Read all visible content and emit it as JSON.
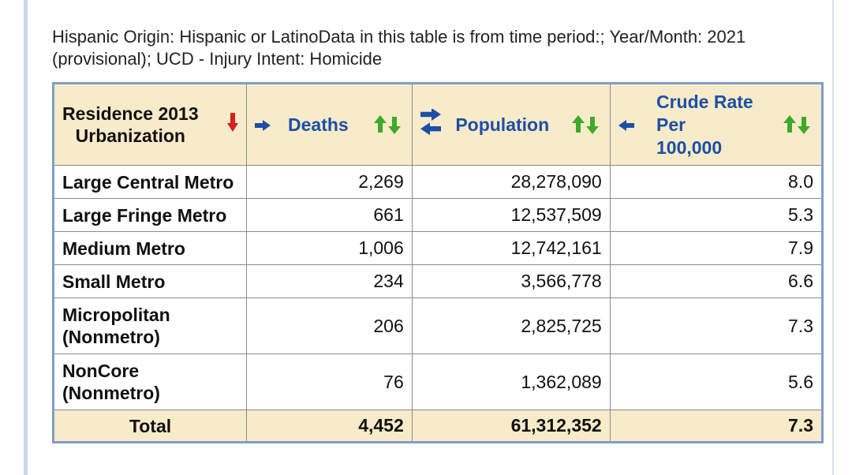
{
  "caption": "Hispanic Origin: Hispanic or LatinoData in this table is from time period:; Year/Month: 2021 (provisional); UCD - Injury Intent: Homicide",
  "table": {
    "headers": {
      "residence": [
        "Residence 2013",
        "Urbanization"
      ],
      "deaths": "Deaths",
      "population": "Population",
      "crude_rate": [
        "Crude Rate",
        "Per",
        "100,000"
      ]
    },
    "rows": [
      {
        "label": [
          "Large Central Metro"
        ],
        "deaths": "2,269",
        "population": "28,278,090",
        "rate": "8.0"
      },
      {
        "label": [
          "Large Fringe Metro"
        ],
        "deaths": "661",
        "population": "12,537,509",
        "rate": "5.3"
      },
      {
        "label": [
          "Medium Metro"
        ],
        "deaths": "1,006",
        "population": "12,742,161",
        "rate": "7.9"
      },
      {
        "label": [
          "Small Metro"
        ],
        "deaths": "234",
        "population": "3,566,778",
        "rate": "6.6"
      },
      {
        "label": [
          "Micropolitan",
          "(Nonmetro)"
        ],
        "deaths": "206",
        "population": "2,825,725",
        "rate": "7.3"
      },
      {
        "label": [
          "NonCore",
          "(Nonmetro)"
        ],
        "deaths": "76",
        "population": "1,362,089",
        "rate": "5.6"
      }
    ],
    "total": {
      "label": "Total",
      "deaths": "4,452",
      "population": "61,312,352",
      "rate": "7.3"
    }
  },
  "colors": {
    "header_bg": "#f8ebc9",
    "link_blue": "#1c4fa6",
    "sort_green": "#3faa2a",
    "sort_red": "#d42020",
    "table_border": "#7f9dcc"
  }
}
